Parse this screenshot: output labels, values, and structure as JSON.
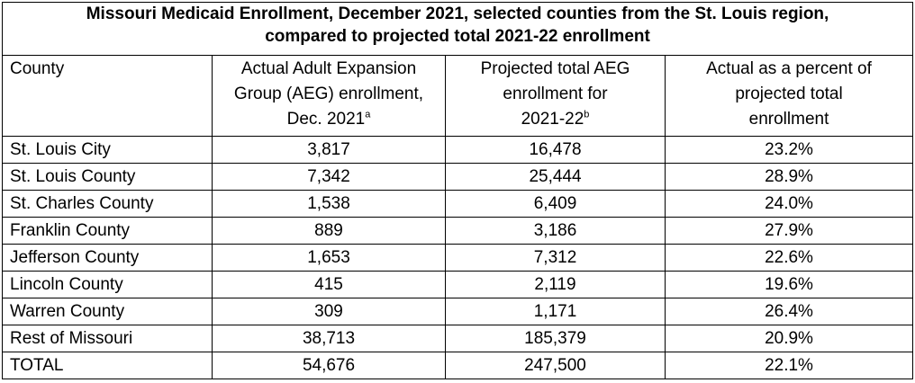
{
  "title_line1": "Missouri Medicaid Enrollment, December 2021, selected counties from the St. Louis region,",
  "title_line2": "compared to projected total 2021-22 enrollment",
  "headers": {
    "county": "County",
    "actual_l1": "Actual Adult Expansion",
    "actual_l2": "Group (AEG) enrollment,",
    "actual_l3": "Dec. 2021",
    "actual_sup": "a",
    "proj_l1": "Projected total AEG",
    "proj_l2": "enrollment for",
    "proj_l3": "2021-22",
    "proj_sup": "b",
    "pct_l1": "Actual as a percent of",
    "pct_l2": "projected total",
    "pct_l3": "enrollment"
  },
  "rows": [
    {
      "county": "St. Louis City",
      "actual": "3,817",
      "projected": "16,478",
      "percent": "23.2%"
    },
    {
      "county": "St. Louis County",
      "actual": "7,342",
      "projected": "25,444",
      "percent": "28.9%"
    },
    {
      "county": "St. Charles County",
      "actual": "1,538",
      "projected": "6,409",
      "percent": "24.0%"
    },
    {
      "county": "Franklin County",
      "actual": "889",
      "projected": "3,186",
      "percent": "27.9%"
    },
    {
      "county": "Jefferson County",
      "actual": "1,653",
      "projected": "7,312",
      "percent": "22.6%"
    },
    {
      "county": "Lincoln County",
      "actual": "415",
      "projected": "2,119",
      "percent": "19.6%"
    },
    {
      "county": "Warren County",
      "actual": "309",
      "projected": "1,171",
      "percent": "26.4%"
    },
    {
      "county": "Rest of Missouri",
      "actual": "38,713",
      "projected": "185,379",
      "percent": "20.9%"
    },
    {
      "county": "TOTAL",
      "actual": "54,676",
      "projected": "247,500",
      "percent": "22.1%"
    }
  ]
}
